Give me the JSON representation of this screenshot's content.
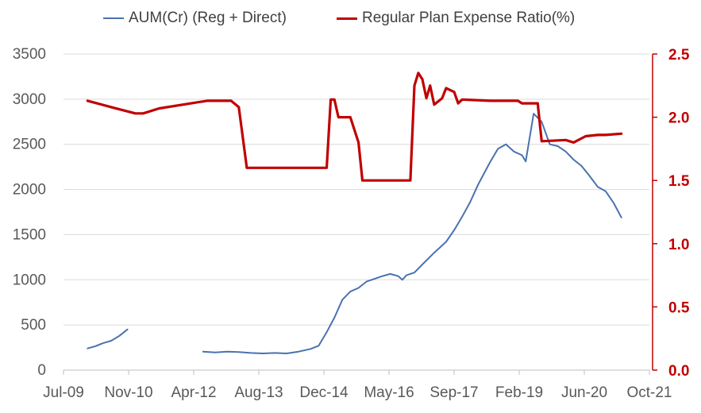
{
  "chart_data": {
    "type": "line",
    "x_axis": {
      "ticks": [
        "Jul-09",
        "Nov-10",
        "Apr-12",
        "Aug-13",
        "Dec-14",
        "May-16",
        "Sep-17",
        "Feb-19",
        "Jun-20",
        "Oct-21"
      ],
      "range": [
        "2009-07",
        "2021-10"
      ]
    },
    "y_left": {
      "ticks": [
        "0",
        "500",
        "1000",
        "1500",
        "2000",
        "2500",
        "3000",
        "3500"
      ],
      "range": [
        0,
        3500
      ]
    },
    "y_right": {
      "ticks": [
        "0.0",
        "0.5",
        "1.0",
        "1.5",
        "2.0",
        "2.5"
      ],
      "range": [
        0,
        2.5
      ],
      "color": "#c00000"
    },
    "grid": "horizontal",
    "legend_position": "top",
    "series": [
      {
        "name": "AUM(Cr) (Reg + Direct)",
        "axis": "left",
        "color": "#4a72b0",
        "segments": [
          [
            [
              "2010-01-01",
              240
            ],
            [
              "2010-03-01",
              265
            ],
            [
              "2010-05-01",
              300
            ],
            [
              "2010-07-01",
              325
            ],
            [
              "2010-09-01",
              380
            ],
            [
              "2010-11-01",
              450
            ]
          ],
          [
            [
              "2012-06-01",
              205
            ],
            [
              "2012-09-01",
              195
            ],
            [
              "2012-12-01",
              205
            ],
            [
              "2013-03-01",
              200
            ],
            [
              "2013-06-01",
              190
            ],
            [
              "2013-09-01",
              185
            ],
            [
              "2013-12-01",
              190
            ],
            [
              "2014-03-01",
              185
            ],
            [
              "2014-06-01",
              205
            ],
            [
              "2014-09-01",
              235
            ],
            [
              "2014-11-01",
              270
            ],
            [
              "2015-01-01",
              420
            ],
            [
              "2015-03-01",
              580
            ],
            [
              "2015-05-01",
              780
            ],
            [
              "2015-07-01",
              870
            ],
            [
              "2015-09-01",
              910
            ],
            [
              "2015-11-01",
              980
            ],
            [
              "2016-01-01",
              1010
            ],
            [
              "2016-03-01",
              1040
            ],
            [
              "2016-05-01",
              1065
            ],
            [
              "2016-07-01",
              1040
            ],
            [
              "2016-08-01",
              1000
            ],
            [
              "2016-09-01",
              1050
            ],
            [
              "2016-11-01",
              1080
            ],
            [
              "2017-01-01",
              1170
            ],
            [
              "2017-04-01",
              1300
            ],
            [
              "2017-07-01",
              1420
            ],
            [
              "2017-09-01",
              1550
            ],
            [
              "2017-11-01",
              1700
            ],
            [
              "2018-01-01",
              1860
            ],
            [
              "2018-03-01",
              2050
            ],
            [
              "2018-06-01",
              2300
            ],
            [
              "2018-08-01",
              2450
            ],
            [
              "2018-10-01",
              2500
            ],
            [
              "2018-12-01",
              2420
            ],
            [
              "2019-02-01",
              2380
            ],
            [
              "2019-03-01",
              2310
            ],
            [
              "2019-05-01",
              2840
            ],
            [
              "2019-07-01",
              2750
            ],
            [
              "2019-09-01",
              2500
            ],
            [
              "2019-11-01",
              2480
            ],
            [
              "2020-01-01",
              2420
            ],
            [
              "2020-03-01",
              2330
            ],
            [
              "2020-05-01",
              2260
            ],
            [
              "2020-07-01",
              2150
            ],
            [
              "2020-09-01",
              2030
            ],
            [
              "2020-11-01",
              1980
            ],
            [
              "2021-01-01",
              1850
            ],
            [
              "2021-03-01",
              1690
            ]
          ]
        ]
      },
      {
        "name": "Regular Plan Expense Ratio(%)",
        "axis": "right",
        "color": "#c00000",
        "segments": [
          [
            [
              "2010-01-01",
              2.13
            ],
            [
              "2010-07-01",
              2.08
            ],
            [
              "2011-01-01",
              2.03
            ],
            [
              "2011-03-01",
              2.03
            ],
            [
              "2011-07-01",
              2.07
            ],
            [
              "2012-01-01",
              2.1
            ],
            [
              "2012-07-01",
              2.13
            ],
            [
              "2013-01-01",
              2.13
            ],
            [
              "2013-03-01",
              2.08
            ],
            [
              "2013-05-01",
              1.6
            ],
            [
              "2014-11-01",
              1.6
            ],
            [
              "2015-01-01",
              1.6
            ],
            [
              "2015-02-01",
              2.14
            ],
            [
              "2015-03-01",
              2.14
            ],
            [
              "2015-04-01",
              2.0
            ],
            [
              "2015-07-01",
              2.0
            ],
            [
              "2015-09-01",
              1.8
            ],
            [
              "2015-10-01",
              1.5
            ],
            [
              "2016-10-01",
              1.5
            ],
            [
              "2016-11-01",
              2.25
            ],
            [
              "2016-12-01",
              2.35
            ],
            [
              "2017-01-01",
              2.3
            ],
            [
              "2017-02-01",
              2.15
            ],
            [
              "2017-03-01",
              2.25
            ],
            [
              "2017-04-01",
              2.1
            ],
            [
              "2017-06-01",
              2.15
            ],
            [
              "2017-07-01",
              2.23
            ],
            [
              "2017-09-01",
              2.2
            ],
            [
              "2017-10-01",
              2.11
            ],
            [
              "2017-11-01",
              2.14
            ],
            [
              "2018-06-01",
              2.13
            ],
            [
              "2019-01-01",
              2.13
            ],
            [
              "2019-02-01",
              2.11
            ],
            [
              "2019-06-01",
              2.11
            ],
            [
              "2019-07-01",
              1.81
            ],
            [
              "2020-01-01",
              1.82
            ],
            [
              "2020-03-01",
              1.8
            ],
            [
              "2020-06-01",
              1.85
            ],
            [
              "2020-09-01",
              1.86
            ],
            [
              "2020-11-01",
              1.86
            ],
            [
              "2021-03-01",
              1.87
            ]
          ]
        ]
      }
    ]
  }
}
